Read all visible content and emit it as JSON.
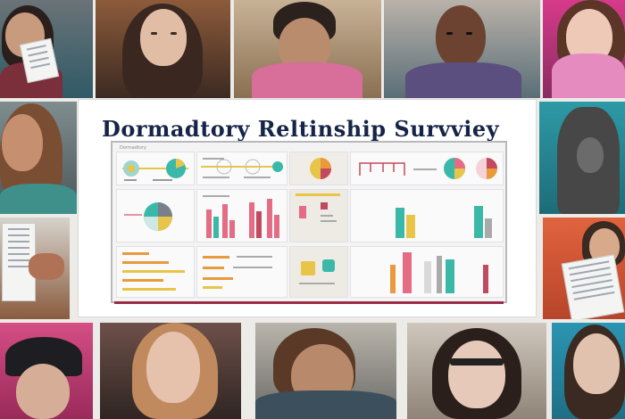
{
  "survey": {
    "title": "Dormadtory Reltinship Survviey",
    "panel_tab_label": "Dormadtory"
  },
  "colors": {
    "title": "#152447",
    "teal": "#3bb9a8",
    "yellow": "#e8c548",
    "pink": "#e46c85",
    "orange": "#e89a3c",
    "accent_line": "#9a2d46"
  },
  "photos": [
    "person-reading-paper",
    "person-long-dark-hair",
    "person-covering-face",
    "person-looking-aside",
    "person-with-glasses-pink-scarf",
    "person-long-hair-left",
    "person-hooded-right",
    "hands-holding-survey",
    "person-holding-papers-right",
    "person-black-beanie",
    "person-long-hair-bottom",
    "person-covering-ears",
    "person-dark-glasses",
    "person-glasses-bottom-right"
  ]
}
